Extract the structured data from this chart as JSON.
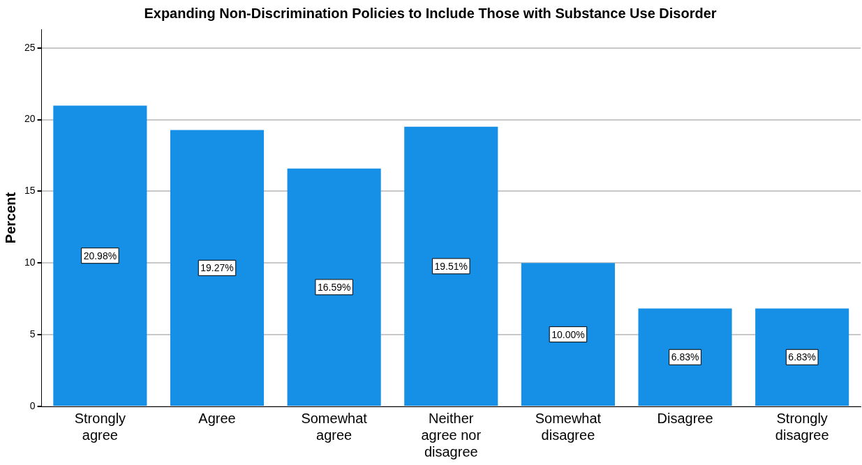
{
  "chart_data": {
    "type": "bar",
    "title": "Expanding Non-Discrimination Policies to Include Those with Substance Use Disorder",
    "ylabel": "Percent",
    "categories": [
      "Strongly agree",
      "Agree",
      "Somewhat agree",
      "Neither agree nor disagree",
      "Somewhat disagree",
      "Disagree",
      "Strongly disagree"
    ],
    "values": [
      20.98,
      19.27,
      16.59,
      19.51,
      10.0,
      6.83,
      6.83
    ],
    "value_labels": [
      "20.98%",
      "19.27%",
      "16.59%",
      "19.51%",
      "10.00%",
      "6.83%",
      "6.83%"
    ],
    "color": "#1690e6",
    "ylim": [
      0,
      26.3
    ],
    "yticks": [
      0,
      5,
      10,
      15,
      20,
      25
    ],
    "grid": "y",
    "legend": false
  }
}
